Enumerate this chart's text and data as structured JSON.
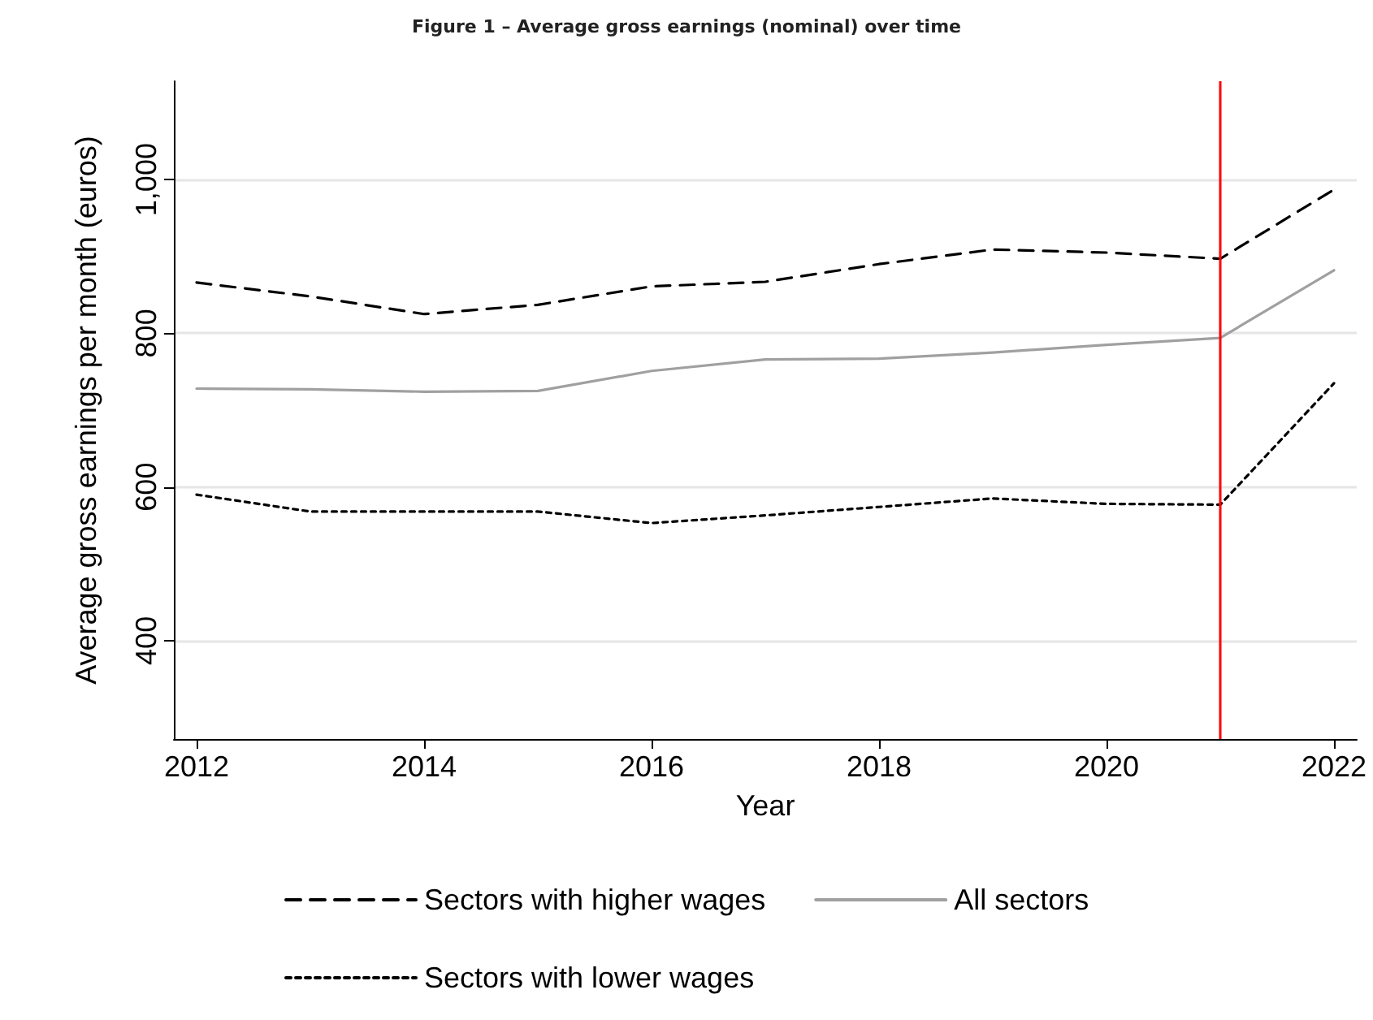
{
  "chart_data": {
    "type": "line",
    "title": "Figure 1 – Average gross earnings (nominal) over time",
    "xlabel": "Year",
    "ylabel": "Average gross earnings per month (euros)",
    "x": [
      2012,
      2013,
      2014,
      2015,
      2016,
      2017,
      2018,
      2019,
      2020,
      2021,
      2022
    ],
    "series": [
      {
        "name": "Sectors with higher wages",
        "color": "#000000",
        "line_style": "dashed",
        "values": [
          866,
          848,
          825,
          837,
          861,
          867,
          890,
          909,
          905,
          897,
          987
        ]
      },
      {
        "name": "All sectors",
        "color": "#a0a0a0",
        "line_style": "solid",
        "values": [
          728,
          727,
          724,
          725,
          751,
          766,
          767,
          775,
          785,
          794,
          882
        ]
      },
      {
        "name": "Sectors with lower wages",
        "color": "#000000",
        "line_style": "dotted",
        "values": [
          590,
          568,
          568,
          568,
          553,
          563,
          574,
          585,
          578,
          577,
          735
        ]
      }
    ],
    "xlim": [
      2011.8,
      2022.2
    ],
    "xticks": [
      2012,
      2014,
      2016,
      2018,
      2020,
      2022
    ],
    "ylim": [
      272,
      1128
    ],
    "yticks": [
      400,
      600,
      800,
      {
        "value": 1000,
        "label": "1,000"
      }
    ],
    "ref_lines": [
      {
        "axis": "x",
        "value": 2021,
        "color": "#ff0000",
        "line_style": "solid"
      }
    ],
    "grid": "y",
    "legend": "bottom",
    "marker": "none"
  }
}
